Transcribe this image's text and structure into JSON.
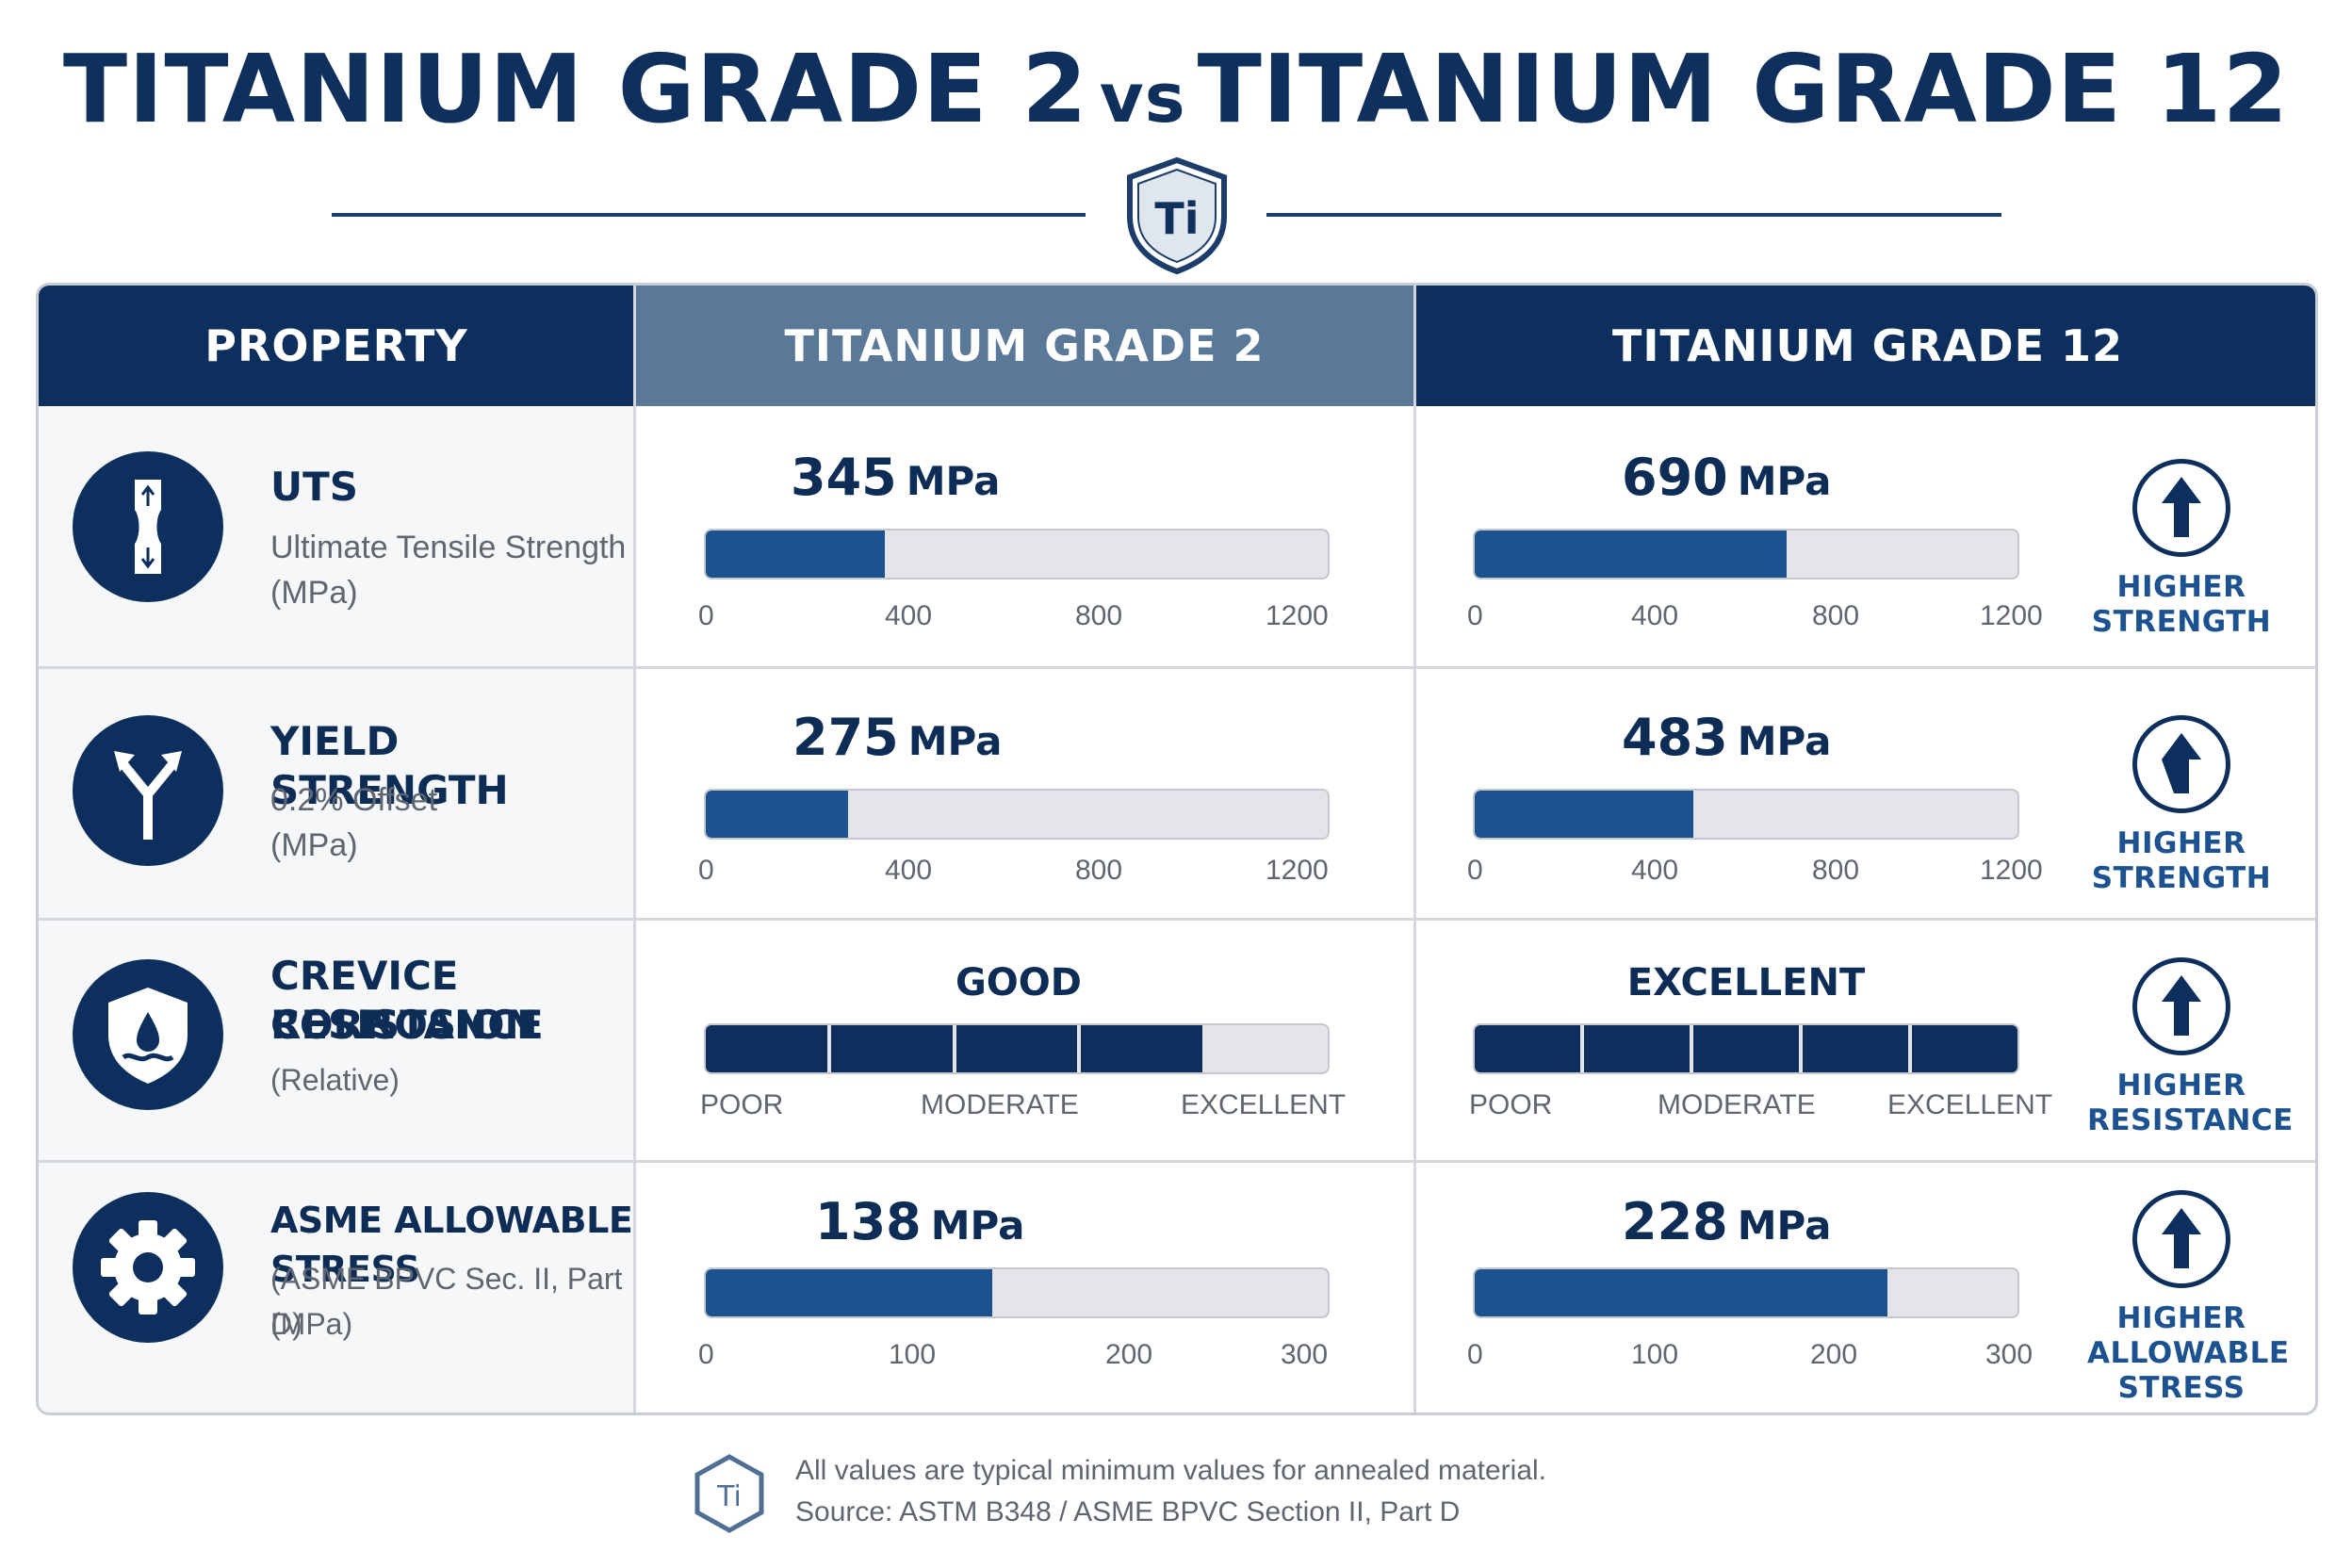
{
  "title": {
    "left": "TITANIUM GRADE 2",
    "vs": "vs",
    "right": "TITANIUM GRADE 12"
  },
  "crest": {
    "symbol": "Ti",
    "icon": "shield-ti-icon"
  },
  "columns": [
    "PROPERTY",
    "TITANIUM GRADE 2",
    "TITANIUM GRADE 12"
  ],
  "colors": {
    "navy": "#0c2f5e",
    "bar_blue": "#1d5290",
    "header_mid": "#5a7898",
    "track": "#e3e5e9"
  },
  "chart_data": {
    "type": "table",
    "series": [
      {
        "name": "TITANIUM GRADE 2"
      },
      {
        "name": "TITANIUM GRADE 12"
      }
    ],
    "rows": [
      {
        "property": "UTS",
        "sub1": "Ultimate Tensile Strength",
        "sub2": "(MPa)",
        "icon": "tensile-specimen-icon",
        "kind": "numeric",
        "unit": "MPa",
        "xlim": [
          0,
          1200
        ],
        "ticks": [
          "0",
          "400",
          "800",
          "1200"
        ],
        "g2": {
          "value": 345
        },
        "g12": {
          "value": 690
        },
        "badge": {
          "icon": "up-arrow-icon",
          "line1": "HIGHER",
          "line2": "STRENGTH",
          "line3": ""
        }
      },
      {
        "property": "YIELD STRENGTH",
        "sub1": "0.2% Offset",
        "sub2": "(MPa)",
        "icon": "yield-split-arrow-icon",
        "kind": "numeric",
        "unit": "MPa",
        "xlim": [
          0,
          1200
        ],
        "ticks": [
          "0",
          "400",
          "800",
          "1200"
        ],
        "g2": {
          "value": 275
        },
        "g12": {
          "value": 483
        },
        "badge": {
          "icon": "up-arrow-icon",
          "line1": "HIGHER",
          "line2": "STRENGTH",
          "line3": ""
        }
      },
      {
        "property": "CREVICE CORROSION",
        "property2": "RESISTANCE",
        "sub1": "(Relative)",
        "icon": "shield-droplet-icon",
        "kind": "rating",
        "scale_max": 5,
        "ticks": [
          "POOR",
          "MODERATE",
          "EXCELLENT"
        ],
        "g2": {
          "rating": 4,
          "label": "GOOD"
        },
        "g12": {
          "rating": 5,
          "label": "EXCELLENT"
        },
        "badge": {
          "icon": "up-arrow-icon",
          "line1": "HIGHER",
          "line2": "RESISTANCE",
          "line3": ""
        }
      },
      {
        "property": "ASME ALLOWABLE STRESS",
        "sub1": "(ASME BPVC Sec. II, Part D)",
        "sub2": "(MPa)",
        "icon": "gear-icon",
        "kind": "numeric",
        "unit": "MPa",
        "xlim": [
          0,
          300
        ],
        "ticks": [
          "0",
          "100",
          "200",
          "300"
        ],
        "g2": {
          "value": 138
        },
        "g12": {
          "value": 228
        },
        "badge": {
          "icon": "up-arrow-icon",
          "line1": "HIGHER",
          "line2": "ALLOWABLE",
          "line3": "STRESS"
        }
      }
    ]
  },
  "footer": {
    "icon": "ti-hexagon-icon",
    "line1": "All values are typical minimum values for annealed material.",
    "line2": "Source: ASTM B348 / ASME BPVC Section II, Part D"
  }
}
